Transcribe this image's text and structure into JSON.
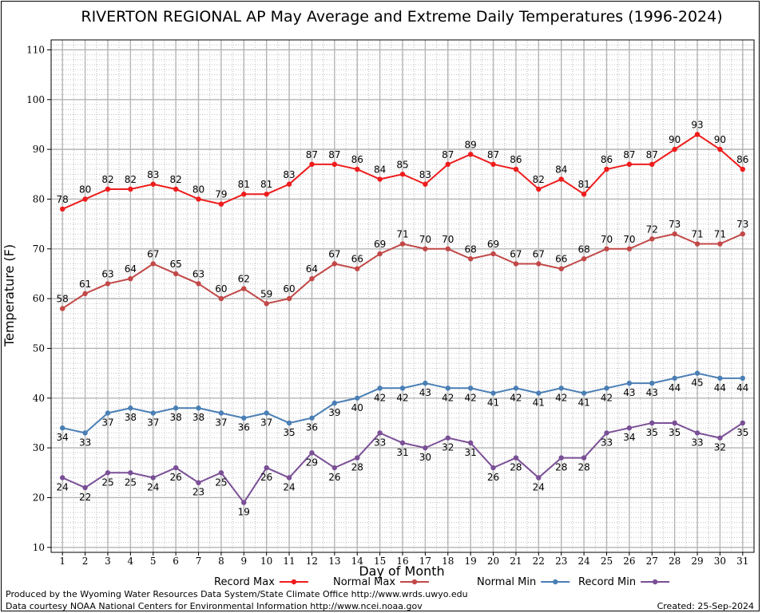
{
  "chart_data": {
    "type": "line",
    "title": "RIVERTON REGIONAL AP May Average and Extreme Daily Temperatures (1996-2024)",
    "xlabel": "Day of Month",
    "ylabel": "Temperature (F)",
    "ylim": [
      9,
      112
    ],
    "yticks": [
      10,
      20,
      30,
      40,
      50,
      60,
      70,
      80,
      90,
      100,
      110
    ],
    "x": [
      1,
      2,
      3,
      4,
      5,
      6,
      7,
      8,
      9,
      10,
      11,
      12,
      13,
      14,
      15,
      16,
      17,
      18,
      19,
      20,
      21,
      22,
      23,
      24,
      25,
      26,
      27,
      28,
      29,
      30,
      31
    ],
    "grid": true,
    "legend_position": "bottom",
    "series": [
      {
        "name": "Record Max",
        "color": "#ee1c1c",
        "label_position": "above",
        "values": [
          78,
          80,
          82,
          82,
          83,
          82,
          80,
          79,
          81,
          81,
          83,
          87,
          87,
          86,
          84,
          85,
          83,
          87,
          89,
          87,
          86,
          82,
          84,
          81,
          86,
          87,
          87,
          90,
          93,
          90,
          86
        ]
      },
      {
        "name": "Normal Max",
        "color": "#c24848",
        "label_position": "above",
        "values": [
          58,
          61,
          63,
          64,
          67,
          65,
          63,
          60,
          62,
          59,
          60,
          64,
          67,
          66,
          69,
          71,
          70,
          70,
          68,
          69,
          67,
          67,
          66,
          68,
          70,
          70,
          72,
          73,
          71,
          71,
          73
        ]
      },
      {
        "name": "Normal Min",
        "color": "#4a7fb5",
        "label_position": "below",
        "values": [
          34,
          33,
          37,
          38,
          37,
          38,
          38,
          37,
          36,
          37,
          35,
          36,
          39,
          40,
          42,
          42,
          43,
          42,
          42,
          41,
          42,
          41,
          42,
          41,
          42,
          43,
          43,
          44,
          45,
          44,
          44
        ]
      },
      {
        "name": "Record Min",
        "color": "#7a4f96",
        "label_position": "below",
        "values": [
          24,
          22,
          25,
          25,
          24,
          26,
          23,
          25,
          19,
          26,
          24,
          29,
          26,
          28,
          33,
          31,
          30,
          32,
          31,
          26,
          28,
          24,
          28,
          28,
          33,
          34,
          35,
          35,
          33,
          32,
          35
        ]
      }
    ]
  },
  "footer": {
    "line1": "Produced by the Wyoming Water Resources Data System/State Climate Office http://www.wrds.uwyo.edu",
    "line2": "Data courtesy NOAA National Centers for Environmental Information http://www.ncei.noaa.gov",
    "created": "Created:  25-Sep-2024"
  }
}
